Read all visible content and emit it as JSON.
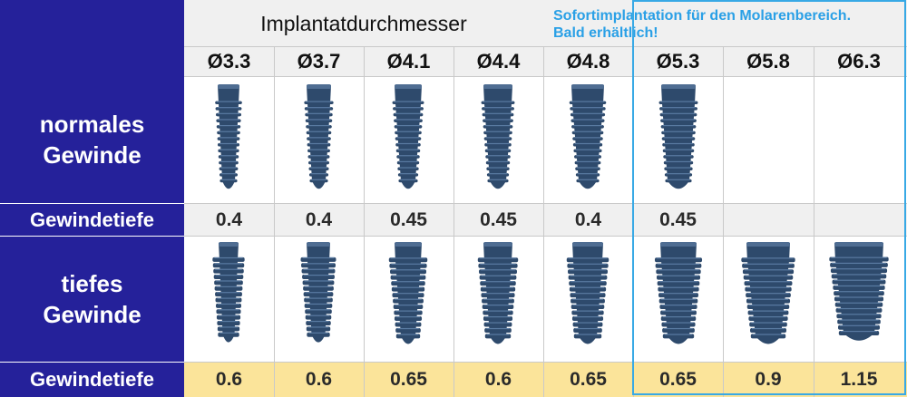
{
  "header": {
    "title": "Implantatdurchmesser",
    "note": [
      "Sofortimplantation für den Molarenbereich.",
      "Bald erhältlich!"
    ]
  },
  "rows": {
    "normal_label": [
      "normales",
      "Gewinde"
    ],
    "deep_label": [
      "tiefes",
      "Gewinde"
    ],
    "depth_label": "Gewindetiefe"
  },
  "diameters": [
    "Ø3.3",
    "Ø3.7",
    "Ø4.1",
    "Ø4.4",
    "Ø4.8",
    "Ø5.3",
    "Ø5.8",
    "Ø6.3"
  ],
  "normal_depths": [
    "0.4",
    "0.4",
    "0.45",
    "0.45",
    "0.4",
    "0.45",
    "",
    ""
  ],
  "deep_depths": [
    "0.6",
    "0.6",
    "0.65",
    "0.6",
    "0.65",
    "0.65",
    "0.9",
    "1.15"
  ],
  "colors": {
    "label_bg": "#25219a",
    "header_bg": "#f0f0f0",
    "depth_highlight_bg": "#fbe49a",
    "implant": "#2e4a6c",
    "note_text": "#2aa0e6",
    "highlight_border": "#38a9e5"
  }
}
